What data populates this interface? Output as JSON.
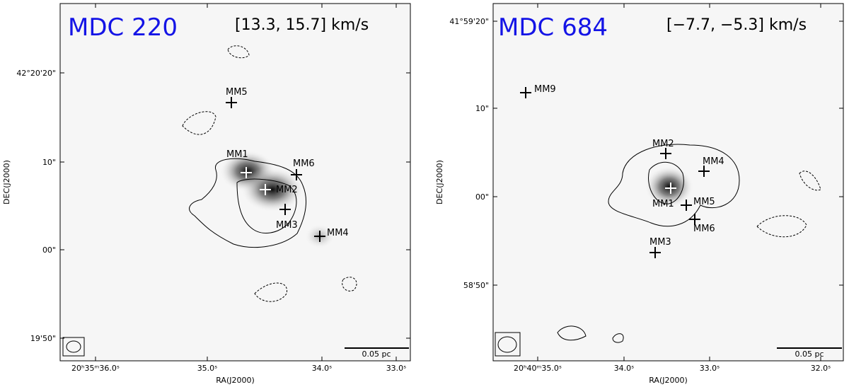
{
  "panels": [
    {
      "title": "MDC 220",
      "velocity": "[13.3, 15.7] km/s",
      "xlabel": "RA(J2000)",
      "ylabel": "DEC(J2000)",
      "scale_bar": "0.05 pc",
      "xticks": [
        "20ʰ35ᵐ36.0ˢ",
        "35.0ˢ",
        "34.0ˢ",
        "33.0ˢ"
      ],
      "yticks": [
        "42°20'20\"",
        "10\"",
        "00\"",
        "19'50\""
      ],
      "sources": [
        "MM1",
        "MM2",
        "MM3",
        "MM4",
        "MM5",
        "MM6"
      ]
    },
    {
      "title": "MDC 684",
      "velocity": "[−7.7, −5.3] km/s",
      "xlabel": "RA(J2000)",
      "ylabel": "DEC(J2000)",
      "scale_bar": "0.05 pc",
      "xticks": [
        "20ʰ40ᵐ35.0ˢ",
        "34.0ˢ",
        "33.0ˢ",
        "32.0ˢ"
      ],
      "yticks": [
        "41°59'20\"",
        "10\"",
        "00\"",
        "58'50\""
      ],
      "sources": [
        "MM9",
        "MM2",
        "MM4",
        "MM1",
        "MM5",
        "MM6",
        "MM3"
      ]
    }
  ]
}
